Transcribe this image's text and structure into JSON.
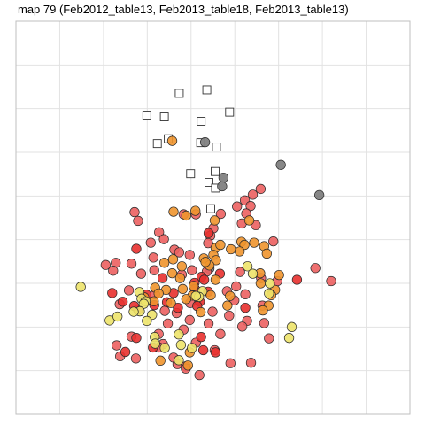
{
  "title": "map 79 (Feb2012_table13, Feb2013_table18, Feb2013_table13)",
  "colors": {
    "red": "#e8302e",
    "salmon": "#ec6060",
    "orange": "#f0952e",
    "yellow": "#ede36a",
    "gray": "#7a7a7a",
    "grid": "#e2e2e2",
    "panel_border": "#bfbfbf"
  },
  "chart_data": {
    "type": "scatter",
    "xlim": [
      0,
      9
    ],
    "ylim": [
      0,
      9
    ],
    "xticks": [
      1,
      2,
      3,
      4,
      5,
      6,
      7,
      8
    ],
    "yticks": [
      1,
      2,
      3,
      4,
      5,
      6,
      7,
      8
    ],
    "grid": true,
    "axis_labels_shown": false,
    "legend": "none",
    "series": [
      {
        "marker": "square-open",
        "color": "none",
        "points": [
          [
            4.36,
            7.43
          ],
          [
            3.73,
            7.35
          ],
          [
            2.99,
            6.85
          ],
          [
            3.39,
            6.81
          ],
          [
            4.23,
            6.71
          ],
          [
            4.88,
            6.92
          ],
          [
            3.48,
            6.31
          ],
          [
            3.23,
            6.2
          ],
          [
            4.22,
            6.22
          ],
          [
            4.58,
            6.12
          ],
          [
            3.99,
            5.51
          ],
          [
            4.55,
            5.56
          ],
          [
            4.41,
            5.31
          ],
          [
            4.56,
            5.18
          ],
          [
            4.45,
            4.71
          ]
        ]
      },
      {
        "marker": "circle",
        "color": "gray",
        "points": [
          [
            4.32,
            6.23
          ],
          [
            6.05,
            5.71
          ],
          [
            4.74,
            5.42
          ],
          [
            4.71,
            5.22
          ],
          [
            6.93,
            5.02
          ],
          [
            4.42,
            3.34
          ]
        ]
      },
      {
        "marker": "circle",
        "color": "salmon",
        "points": [
          [
            5.59,
            5.16
          ],
          [
            5.41,
            5.03
          ],
          [
            5.23,
            4.9
          ],
          [
            5.05,
            4.76
          ],
          [
            5.36,
            4.77
          ],
          [
            5.26,
            4.6
          ],
          [
            4.68,
            4.59
          ],
          [
            4.11,
            4.58
          ],
          [
            3.83,
            4.58
          ],
          [
            2.71,
            4.63
          ],
          [
            2.79,
            4.43
          ],
          [
            5.16,
            4.37
          ],
          [
            5.48,
            4.33
          ],
          [
            4.51,
            4.26
          ],
          [
            4.44,
            4.09
          ],
          [
            3.27,
            4.17
          ],
          [
            3.38,
            4.01
          ],
          [
            3.08,
            3.93
          ],
          [
            5.88,
            3.96
          ],
          [
            4.39,
            3.92
          ],
          [
            3.62,
            3.77
          ],
          [
            3.73,
            3.71
          ],
          [
            3.97,
            3.65
          ],
          [
            3.14,
            3.59
          ],
          [
            2.05,
            3.42
          ],
          [
            2.28,
            3.47
          ],
          [
            2.64,
            3.45
          ],
          [
            2.22,
            3.29
          ],
          [
            3.16,
            3.3
          ],
          [
            4.36,
            3.27
          ],
          [
            4.02,
            3.3
          ],
          [
            5.12,
            3.26
          ],
          [
            2.86,
            3.22
          ],
          [
            3.79,
            3.2
          ],
          [
            6.84,
            3.35
          ],
          [
            7.2,
            3.05
          ],
          [
            5.97,
            3.05
          ],
          [
            5.6,
            3.12
          ],
          [
            5.03,
            2.93
          ],
          [
            4.82,
            2.82
          ],
          [
            2.58,
            2.84
          ],
          [
            3.18,
            2.75
          ],
          [
            5.24,
            2.75
          ],
          [
            4.99,
            2.61
          ],
          [
            3.98,
            2.55
          ],
          [
            2.37,
            2.52
          ],
          [
            5.63,
            2.49
          ],
          [
            2.79,
            2.4
          ],
          [
            3.4,
            2.37
          ],
          [
            3.67,
            2.32
          ],
          [
            4.49,
            2.35
          ],
          [
            4.87,
            2.26
          ],
          [
            3.97,
            2.16
          ],
          [
            3.47,
            2.08
          ],
          [
            5.28,
            2.14
          ],
          [
            4.4,
            2.08
          ],
          [
            5.67,
            2.09
          ],
          [
            5.17,
            2.01
          ],
          [
            3.83,
            1.94
          ],
          [
            3.26,
            1.84
          ],
          [
            4.67,
            1.84
          ],
          [
            5.78,
            1.74
          ],
          [
            2.64,
            1.78
          ],
          [
            2.3,
            1.58
          ],
          [
            3.36,
            1.61
          ],
          [
            4.11,
            1.64
          ],
          [
            3.27,
            1.53
          ],
          [
            4.54,
            1.47
          ],
          [
            2.74,
            1.28
          ],
          [
            3.6,
            1.3
          ],
          [
            2.38,
            1.33
          ],
          [
            4.9,
            1.17
          ],
          [
            3.69,
            1.15
          ],
          [
            3.88,
            1.1
          ],
          [
            5.37,
            1.18
          ],
          [
            3.88,
            1.05
          ],
          [
            4.19,
            0.9
          ]
        ]
      },
      {
        "marker": "circle",
        "color": "red",
        "points": [
          [
            4.4,
            4.15
          ],
          [
            2.75,
            3.79
          ],
          [
            4.66,
            3.22
          ],
          [
            4.24,
            3.15
          ],
          [
            3.35,
            3.12
          ],
          [
            4.3,
            3.08
          ],
          [
            6.42,
            3.08
          ],
          [
            4.08,
            3.01
          ],
          [
            4.09,
            2.87
          ],
          [
            4.39,
            2.81
          ],
          [
            2.2,
            2.78
          ],
          [
            2.98,
            2.74
          ],
          [
            3.6,
            2.78
          ],
          [
            4.2,
            2.58
          ],
          [
            3.16,
            2.5
          ],
          [
            3.7,
            2.44
          ],
          [
            3.45,
            2.57
          ],
          [
            2.44,
            2.58
          ],
          [
            2.7,
            2.48
          ],
          [
            4.14,
            2.48
          ],
          [
            5.24,
            2.44
          ],
          [
            2.75,
            1.75
          ],
          [
            2.5,
            1.43
          ],
          [
            3.13,
            1.53
          ],
          [
            4.23,
            1.77
          ],
          [
            4.56,
            1.42
          ],
          [
            4.28,
            1.47
          ]
        ]
      },
      {
        "marker": "circle",
        "color": "orange",
        "points": [
          [
            3.57,
            6.26
          ],
          [
            3.6,
            4.64
          ],
          [
            3.89,
            4.55
          ],
          [
            4.1,
            4.66
          ],
          [
            4.54,
            4.44
          ],
          [
            5.33,
            4.44
          ],
          [
            5.15,
            3.95
          ],
          [
            5.22,
            3.88
          ],
          [
            5.67,
            3.85
          ],
          [
            4.56,
            3.81
          ],
          [
            4.91,
            3.78
          ],
          [
            5.11,
            3.73
          ],
          [
            4.67,
            3.88
          ],
          [
            5.44,
            3.93
          ],
          [
            5.73,
            3.68
          ],
          [
            3.59,
            3.55
          ],
          [
            4.51,
            3.65
          ],
          [
            4.57,
            3.53
          ],
          [
            4.29,
            3.57
          ],
          [
            3.39,
            3.47
          ],
          [
            3.79,
            3.39
          ],
          [
            4.42,
            3.41
          ],
          [
            4.33,
            3.49
          ],
          [
            5.58,
            3.23
          ],
          [
            3.57,
            3.23
          ],
          [
            3.75,
            3.12
          ],
          [
            4.56,
            3.08
          ],
          [
            4.06,
            2.94
          ],
          [
            6.01,
            3.19
          ],
          [
            3.18,
            2.9
          ],
          [
            3.81,
            2.87
          ],
          [
            5.59,
            3.0
          ],
          [
            5.92,
            2.85
          ],
          [
            3.43,
            2.85
          ],
          [
            3.26,
            2.77
          ],
          [
            4.45,
            2.73
          ],
          [
            5.83,
            2.73
          ],
          [
            4.03,
            2.72
          ],
          [
            4.89,
            2.71
          ],
          [
            2.93,
            2.68
          ],
          [
            3.89,
            2.64
          ],
          [
            3.15,
            2.59
          ],
          [
            3.54,
            2.55
          ],
          [
            5.77,
            2.49
          ],
          [
            4.83,
            2.49
          ],
          [
            5.64,
            2.38
          ],
          [
            3.97,
            1.42
          ],
          [
            3.93,
            1.12
          ],
          [
            3.3,
            1.23
          ],
          [
            4.22,
            2.34
          ]
        ]
      },
      {
        "marker": "circle",
        "color": "yellow",
        "points": [
          [
            1.48,
            2.92
          ],
          [
            5.29,
            3.39
          ],
          [
            4.26,
            2.82
          ],
          [
            5.41,
            3.22
          ],
          [
            2.82,
            2.8
          ],
          [
            5.8,
            3.0
          ],
          [
            5.78,
            2.77
          ],
          [
            4.18,
            2.69
          ],
          [
            4.11,
            2.71
          ],
          [
            2.87,
            2.65
          ],
          [
            2.96,
            2.59
          ],
          [
            2.92,
            2.53
          ],
          [
            2.83,
            2.36
          ],
          [
            2.69,
            2.35
          ],
          [
            3.11,
            2.28
          ],
          [
            2.99,
            2.14
          ],
          [
            2.14,
            2.15
          ],
          [
            2.32,
            2.24
          ],
          [
            3.72,
            1.83
          ],
          [
            3.17,
            1.77
          ],
          [
            3.18,
            1.62
          ],
          [
            3.77,
            1.59
          ],
          [
            3.4,
            1.52
          ],
          [
            6.3,
            2.0
          ],
          [
            6.24,
            1.75
          ],
          [
            4.02,
            1.52
          ],
          [
            3.72,
            1.24
          ]
        ]
      }
    ]
  }
}
